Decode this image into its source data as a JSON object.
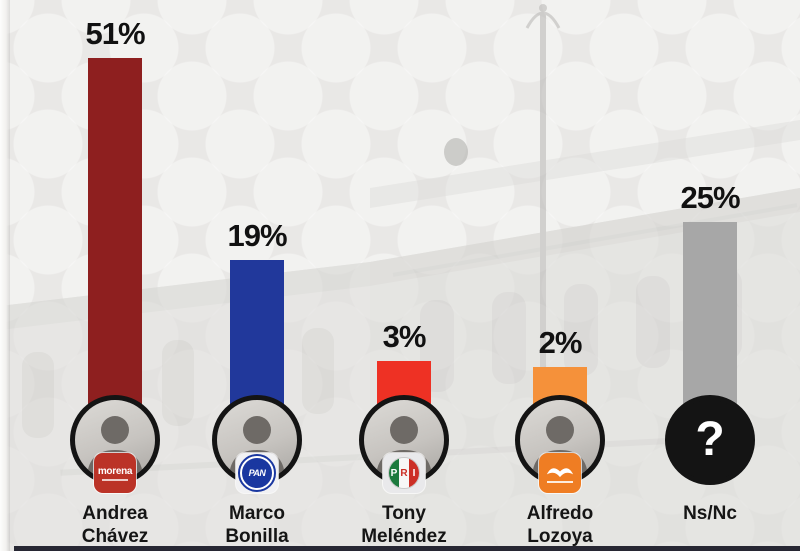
{
  "chart_data": {
    "type": "bar",
    "title": "",
    "xlabel": "",
    "ylabel": "",
    "categories": [
      "Andrea Chávez",
      "Marco Bonilla",
      "Tony Meléndez",
      "Alfredo Lozoya",
      "Ns/Nc"
    ],
    "values": [
      51,
      19,
      3,
      2,
      25
    ],
    "unit": "%",
    "ylim": [
      0,
      55
    ],
    "grid": false,
    "legend": "none",
    "value_labels_shown": true,
    "bar_colors": [
      "#8e1f1f",
      "#21389b",
      "#ee3124",
      "#f5913a",
      "#a7a7a7"
    ]
  },
  "candidates": [
    {
      "percent": "51%",
      "name_line1": "Andrea",
      "name_line2": "Chávez",
      "party": "Morena"
    },
    {
      "percent": "19%",
      "name_line1": "Marco",
      "name_line2": "Bonilla",
      "party": "PAN"
    },
    {
      "percent": "3%",
      "name_line1": "Tony",
      "name_line2": "Meléndez",
      "party": "PRI"
    },
    {
      "percent": "2%",
      "name_line1": "Alfredo",
      "name_line2": "Lozoya",
      "party": "Movimiento Ciudadano"
    },
    {
      "percent": "25%",
      "name_line1": "Ns/Nc",
      "name_line2": "",
      "party": "",
      "avatar_glyph": "?"
    }
  ],
  "party_badges": {
    "morena_label": "morena",
    "pan_label": "PAN",
    "pri_letters": [
      "P",
      "R",
      "I"
    ]
  }
}
